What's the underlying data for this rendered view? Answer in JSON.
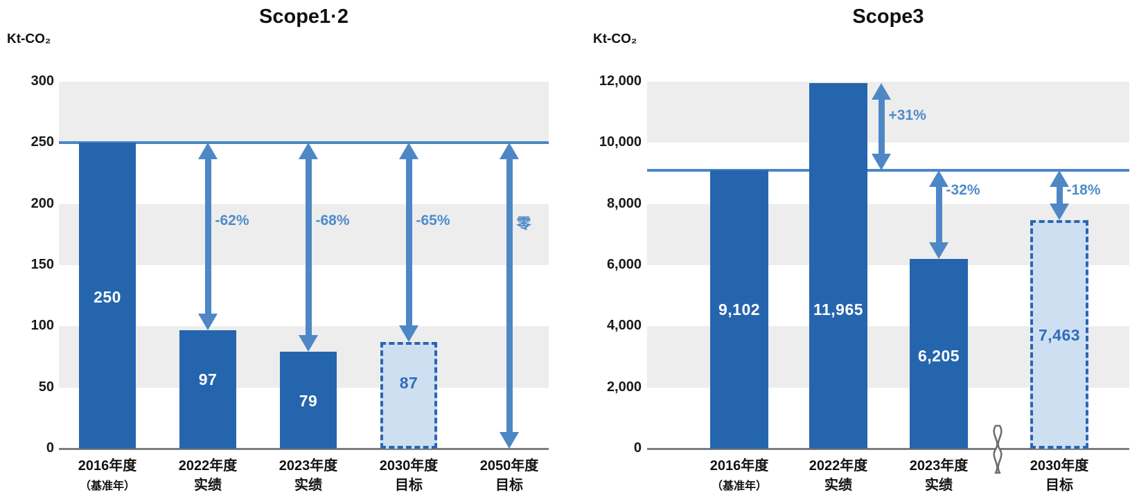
{
  "figure": {
    "description_labels": {
      "left_title": "Scope1·2",
      "right_title": "Scope3",
      "unit": "Kt-CO₂"
    }
  },
  "colors": {
    "bar": "#2565ae",
    "bar_target_fill": "#cfdff2",
    "bar_target_border": "#2a66b2",
    "baseline_line": "#4a86c6",
    "arrow": "#4e87c6",
    "annotation_text": "#4e8bca",
    "grid_band": "#ededed",
    "axis": "#7d7d7d",
    "value_text_on_bar": "#ffffff",
    "value_text_on_target": "#2f6db8"
  },
  "chart_data": [
    {
      "type": "bar",
      "title": "Scope1·2",
      "unit": "Kt-CO₂",
      "ylim": [
        0,
        300
      ],
      "ytick_step": 50,
      "ytick_labels": [
        "0",
        "50",
        "100",
        "150",
        "200",
        "250",
        "300"
      ],
      "grid": "alternating-bands",
      "baseline": {
        "value": 250,
        "note": "base year level line"
      },
      "bars": [
        {
          "label_line1": "2016年度",
          "label_line2": "（基准年）",
          "value": 250,
          "value_label": "250",
          "style": "solid"
        },
        {
          "label_line1": "2022年度",
          "label_line2": "实绩",
          "value": 97,
          "value_label": "97",
          "style": "solid"
        },
        {
          "label_line1": "2023年度",
          "label_line2": "实绩",
          "value": 79,
          "value_label": "79",
          "style": "solid"
        },
        {
          "label_line1": "2030年度",
          "label_line2": "目标",
          "value": 87,
          "value_label": "87",
          "style": "dashed"
        },
        {
          "label_line1": "2050年度",
          "label_line2": "目标",
          "value": 0,
          "value_label": "",
          "style": "none"
        }
      ],
      "annotations": [
        {
          "slot": 1,
          "from": 250,
          "to": 97,
          "label": "-62%"
        },
        {
          "slot": 2,
          "from": 250,
          "to": 79,
          "label": "-68%"
        },
        {
          "slot": 3,
          "from": 250,
          "to": 87,
          "label": "-65%"
        },
        {
          "slot": 4,
          "from": 250,
          "to": 0,
          "label": "零"
        }
      ]
    },
    {
      "type": "bar",
      "title": "Scope3",
      "unit": "Kt-CO₂",
      "ylim": [
        0,
        12000
      ],
      "ytick_step": 2000,
      "ytick_labels": [
        "0",
        "2,000",
        "4,000",
        "6,000",
        "8,000",
        "10,000",
        "12,000"
      ],
      "grid": "alternating-bands",
      "baseline": {
        "value": 9102,
        "note": "base year level line"
      },
      "axis_break_between": [
        "2023年度",
        "2030年度"
      ],
      "bars": [
        {
          "label_line1": "2016年度",
          "label_line2": "（基准年）",
          "value": 9102,
          "value_label": "9,102",
          "style": "solid"
        },
        {
          "label_line1": "2022年度",
          "label_line2": "实绩",
          "value": 11965,
          "value_label": "11,965",
          "style": "solid"
        },
        {
          "label_line1": "2023年度",
          "label_line2": "实绩",
          "value": 6205,
          "value_label": "6,205",
          "style": "solid"
        },
        {
          "label_line1": "2030年度",
          "label_line2": "目标",
          "value": 7463,
          "value_label": "7,463",
          "style": "dashed"
        }
      ],
      "annotations": [
        {
          "slot": 1,
          "from": 11965,
          "to": 9102,
          "label": "+31%"
        },
        {
          "slot": 2,
          "from": 9102,
          "to": 6205,
          "label": "-32%"
        },
        {
          "slot": 3,
          "from": 9102,
          "to": 7463,
          "label": "-18%"
        }
      ]
    }
  ]
}
